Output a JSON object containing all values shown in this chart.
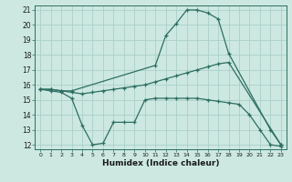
{
  "xlabel": "Humidex (Indice chaleur)",
  "bg_color": "#cce8e0",
  "grid_color": "#aacfc8",
  "line_color": "#2d6e62",
  "xlim": [
    -0.5,
    23.5
  ],
  "ylim": [
    11.7,
    21.3
  ],
  "xticks": [
    0,
    1,
    2,
    3,
    4,
    5,
    6,
    7,
    8,
    9,
    10,
    11,
    12,
    13,
    14,
    15,
    16,
    17,
    18,
    19,
    20,
    21,
    22,
    23
  ],
  "yticks": [
    12,
    13,
    14,
    15,
    16,
    17,
    18,
    19,
    20,
    21
  ],
  "line1_x": [
    0,
    1,
    2,
    3,
    11,
    12,
    13,
    14,
    15,
    16,
    17,
    18,
    22,
    23
  ],
  "line1_y": [
    15.7,
    15.7,
    15.6,
    15.6,
    17.3,
    19.3,
    20.1,
    21.0,
    21.0,
    20.8,
    20.4,
    18.1,
    13.0,
    12.0
  ],
  "line2_x": [
    0,
    1,
    2,
    3,
    4,
    5,
    6,
    7,
    8,
    9,
    10,
    11,
    12,
    13,
    14,
    15,
    16,
    17,
    18,
    23
  ],
  "line2_y": [
    15.7,
    15.7,
    15.6,
    15.5,
    15.4,
    15.5,
    15.6,
    15.7,
    15.8,
    15.9,
    16.0,
    16.2,
    16.4,
    16.6,
    16.8,
    17.0,
    17.2,
    17.4,
    17.5,
    12.0
  ],
  "line3_x": [
    0,
    1,
    2,
    3,
    4,
    5,
    6,
    7,
    8,
    9,
    10,
    11,
    12,
    13,
    14,
    15,
    16,
    17,
    18,
    19,
    20,
    21,
    22,
    23
  ],
  "line3_y": [
    15.7,
    15.6,
    15.5,
    15.1,
    13.3,
    12.0,
    12.1,
    13.5,
    13.5,
    13.5,
    15.0,
    15.1,
    15.1,
    15.1,
    15.1,
    15.1,
    15.0,
    14.9,
    14.8,
    14.7,
    14.0,
    13.0,
    12.0,
    11.9
  ]
}
